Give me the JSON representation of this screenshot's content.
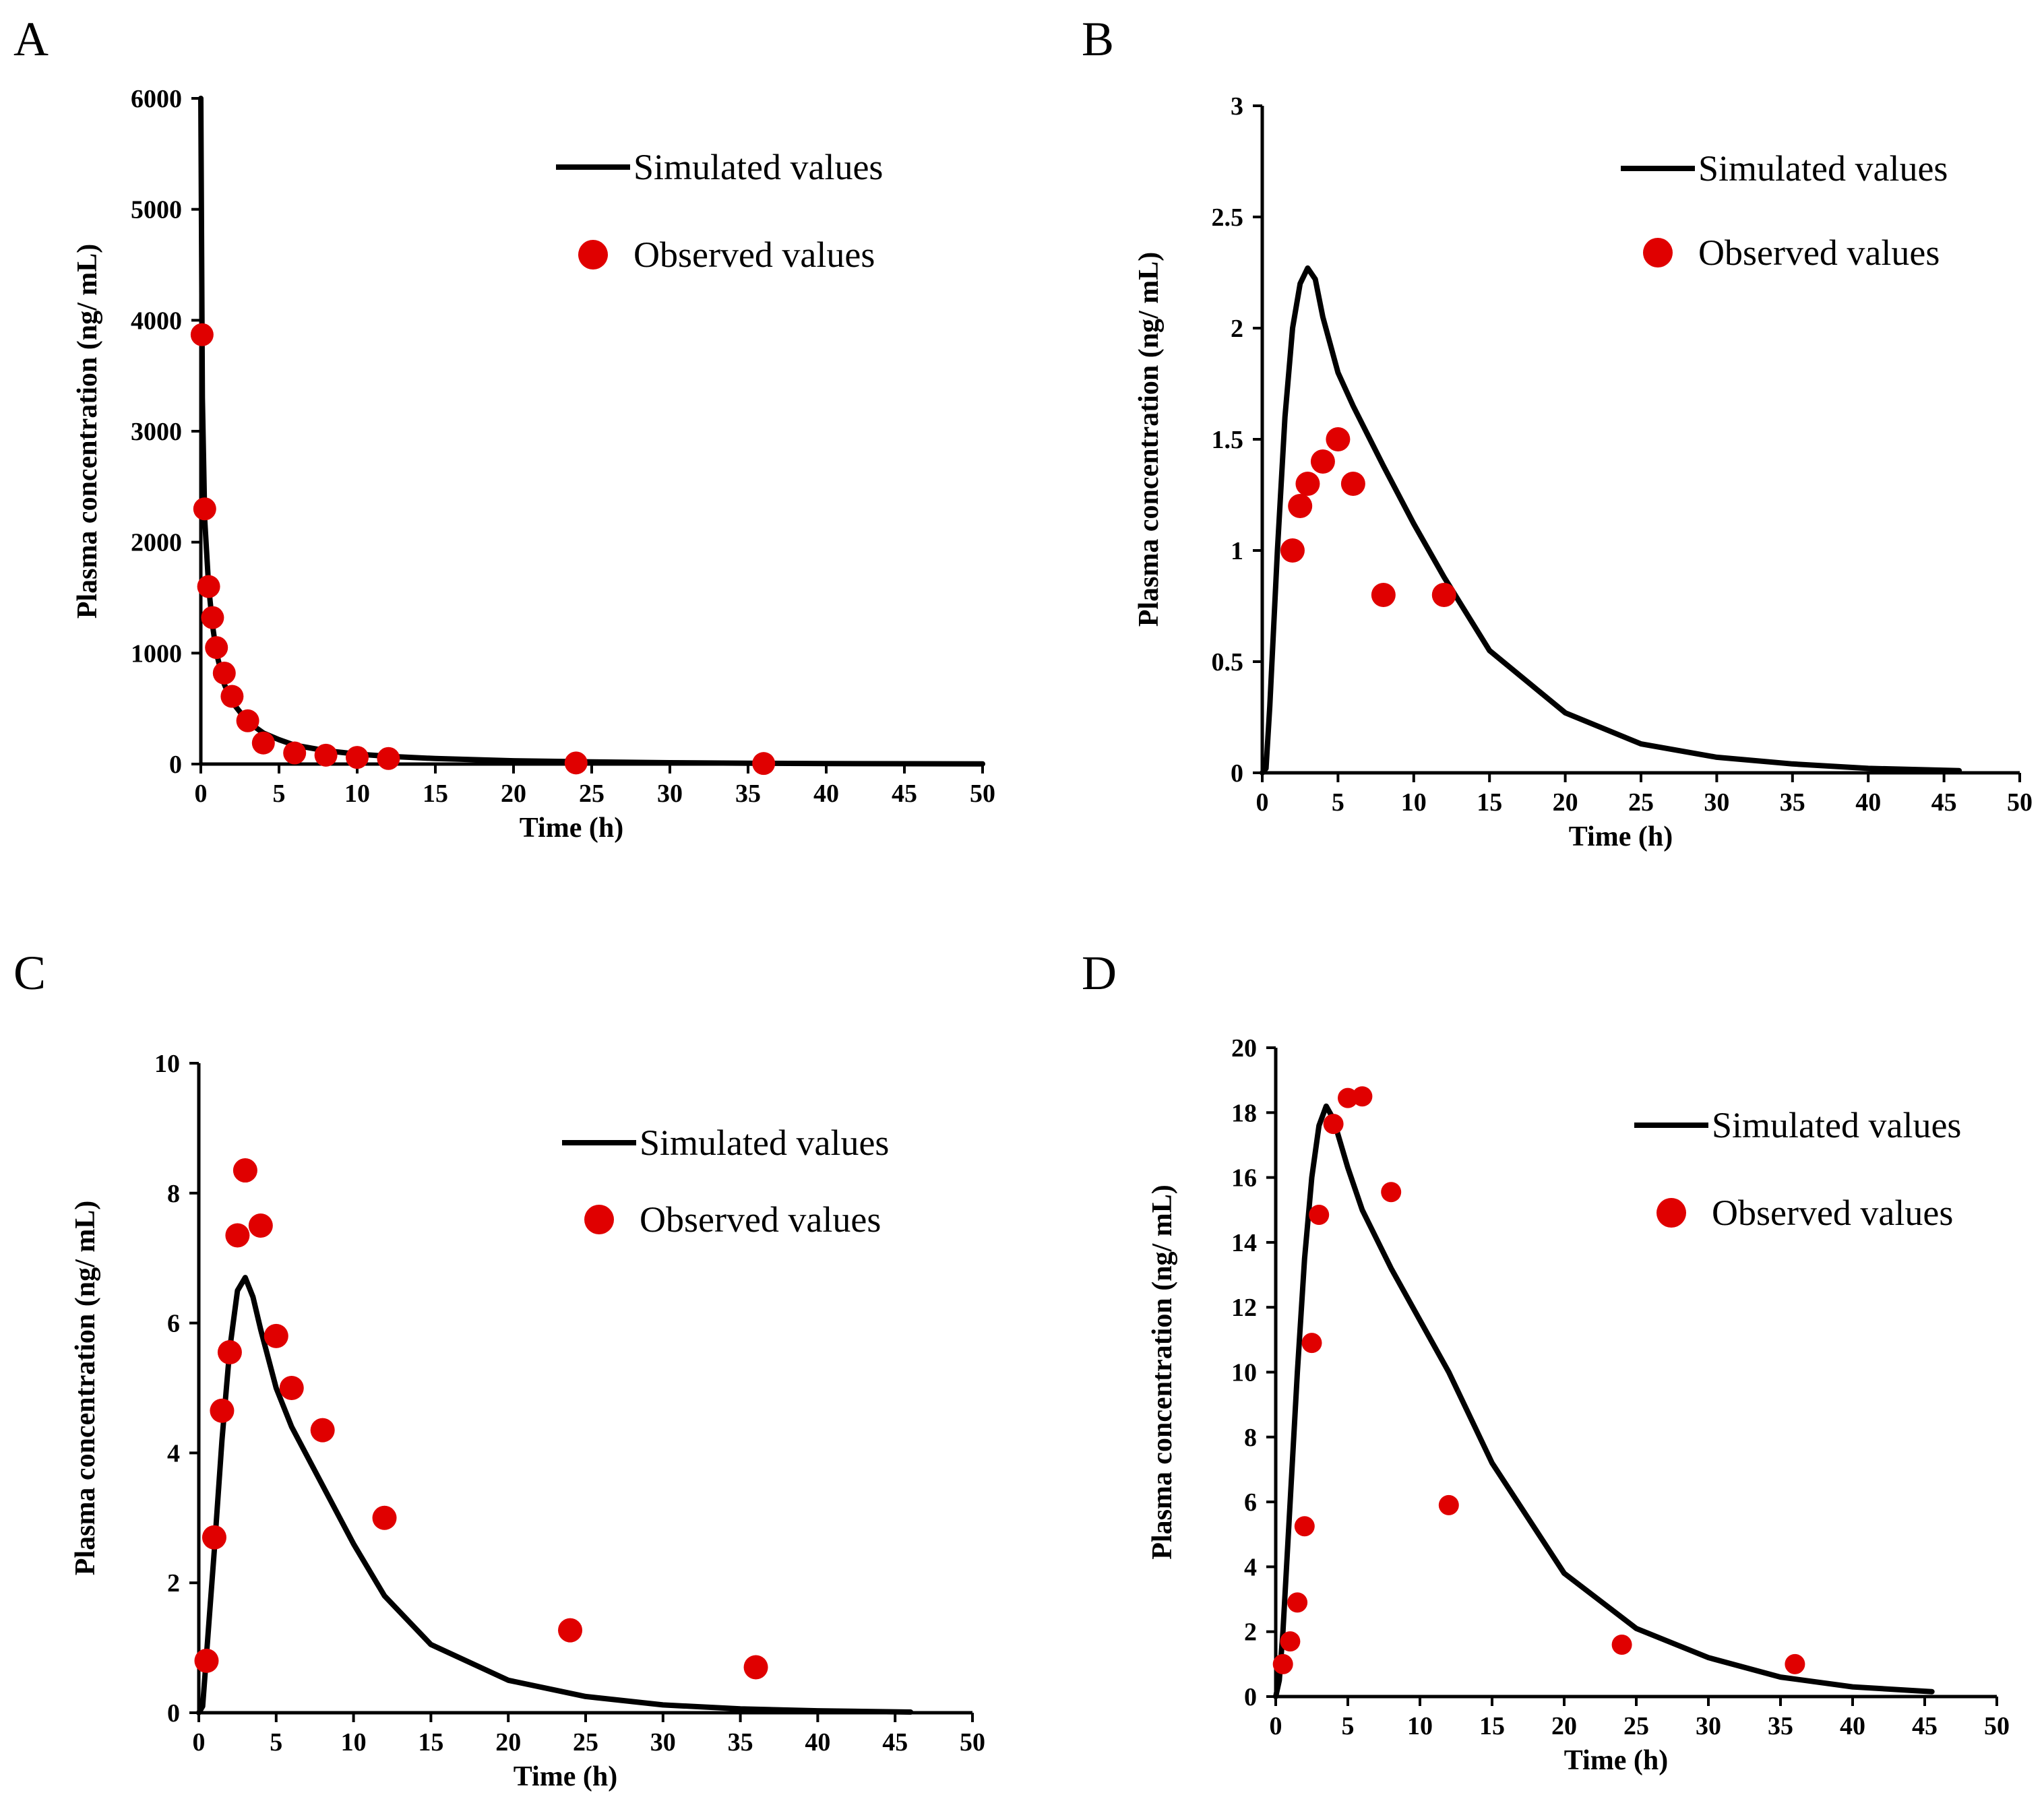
{
  "chart_data": [
    {
      "type": "scatter",
      "panel": "A",
      "title": "",
      "xlabel": "Time (h)",
      "ylabel": "Plasma concentration (ng/ mL)",
      "xlim": [
        0,
        50
      ],
      "ylim": [
        0,
        6000
      ],
      "xticks": [
        "0",
        "5",
        "10",
        "15",
        "20",
        "25",
        "30",
        "35",
        "40",
        "45",
        "50"
      ],
      "yticks": [
        "0",
        "1000",
        "2000",
        "3000",
        "4000",
        "5000",
        "6000"
      ],
      "legend": {
        "position": "top-right",
        "simulated_label": "Simulated values",
        "observed_label": "Observed values"
      },
      "colors": {
        "simulated": "#000000",
        "observed": "#e00000"
      },
      "series": [
        {
          "name": "Simulated values",
          "kind": "line",
          "x": [
            0,
            0.1,
            0.25,
            0.5,
            0.75,
            1,
            1.5,
            2,
            3,
            4,
            5,
            6,
            8,
            10,
            12,
            15,
            20,
            25,
            30,
            35,
            40,
            45,
            50
          ],
          "y": [
            6000,
            3300,
            2200,
            1600,
            1250,
            1000,
            720,
            560,
            380,
            280,
            220,
            170,
            120,
            90,
            70,
            50,
            30,
            20,
            12,
            8,
            5,
            3,
            2
          ]
        },
        {
          "name": "Observed values",
          "kind": "points",
          "x": [
            0.08,
            0.25,
            0.5,
            0.75,
            1,
            1.5,
            2,
            3,
            4,
            6,
            8,
            10,
            12,
            24,
            36
          ],
          "y": [
            3870,
            2300,
            1600,
            1320,
            1050,
            820,
            610,
            390,
            190,
            100,
            80,
            60,
            50,
            10,
            5
          ]
        }
      ]
    },
    {
      "type": "scatter",
      "panel": "B",
      "title": "",
      "xlabel": "Time (h)",
      "ylabel": "Plasma concentration (ng/ mL)",
      "xlim": [
        0,
        50
      ],
      "ylim": [
        0,
        3
      ],
      "xticks": [
        "0",
        "5",
        "10",
        "15",
        "20",
        "25",
        "30",
        "35",
        "40",
        "45",
        "50"
      ],
      "yticks": [
        "0",
        "0.5",
        "1",
        "1.5",
        "2",
        "2.5",
        "3"
      ],
      "legend": {
        "position": "top-right",
        "simulated_label": "Simulated values",
        "observed_label": "Observed values"
      },
      "colors": {
        "simulated": "#000000",
        "observed": "#e00000"
      },
      "series": [
        {
          "name": "Simulated values",
          "kind": "line",
          "x": [
            0,
            0.25,
            0.5,
            1,
            1.5,
            2,
            2.5,
            3,
            3.5,
            4,
            5,
            6,
            8,
            10,
            12,
            15,
            20,
            25,
            30,
            35,
            40,
            46
          ],
          "y": [
            0,
            0.02,
            0.3,
            1.0,
            1.6,
            2.0,
            2.2,
            2.27,
            2.22,
            2.05,
            1.8,
            1.65,
            1.38,
            1.12,
            0.88,
            0.55,
            0.27,
            0.13,
            0.07,
            0.04,
            0.02,
            0.01
          ]
        },
        {
          "name": "Observed values",
          "kind": "points",
          "x": [
            2,
            2.5,
            3,
            4,
            5,
            6,
            8,
            12
          ],
          "y": [
            1.0,
            1.2,
            1.3,
            1.4,
            1.5,
            1.3,
            0.8,
            0.8
          ]
        }
      ]
    },
    {
      "type": "scatter",
      "panel": "C",
      "title": "",
      "xlabel": "Time (h)",
      "ylabel": "Plasma concentration (ng/ mL)",
      "xlim": [
        0,
        50
      ],
      "ylim": [
        0,
        10
      ],
      "xticks": [
        "0",
        "5",
        "10",
        "15",
        "20",
        "25",
        "30",
        "35",
        "40",
        "45",
        "50"
      ],
      "yticks": [
        "0",
        "2",
        "4",
        "6",
        "8",
        "10"
      ],
      "legend": {
        "position": "top-right",
        "simulated_label": "Simulated values",
        "observed_label": "Observed values"
      },
      "colors": {
        "simulated": "#000000",
        "observed": "#e00000"
      },
      "series": [
        {
          "name": "Simulated values",
          "kind": "line",
          "x": [
            0,
            0.25,
            0.5,
            1,
            1.5,
            2,
            2.5,
            3,
            3.5,
            4,
            5,
            6,
            8,
            10,
            12,
            15,
            20,
            25,
            30,
            35,
            40,
            46
          ],
          "y": [
            0,
            0.1,
            0.9,
            2.5,
            4.2,
            5.6,
            6.5,
            6.7,
            6.4,
            5.9,
            5.0,
            4.4,
            3.5,
            2.6,
            1.8,
            1.05,
            0.5,
            0.25,
            0.12,
            0.06,
            0.03,
            0.01
          ]
        },
        {
          "name": "Observed values",
          "kind": "points",
          "x": [
            0.5,
            1,
            1.5,
            2,
            2.5,
            3,
            4,
            5,
            6,
            8,
            12,
            24,
            36
          ],
          "y": [
            0.8,
            2.7,
            4.65,
            5.55,
            7.35,
            8.35,
            7.5,
            5.8,
            5.0,
            4.35,
            3.0,
            1.27,
            0.7
          ]
        }
      ]
    },
    {
      "type": "scatter",
      "panel": "D",
      "title": "",
      "xlabel": "Time (h)",
      "ylabel": "Plasma concentration (ng/ mL)",
      "xlim": [
        0,
        50
      ],
      "ylim": [
        0,
        20
      ],
      "xticks": [
        "0",
        "5",
        "10",
        "15",
        "20",
        "25",
        "30",
        "35",
        "40",
        "45",
        "50"
      ],
      "yticks": [
        "0",
        "2",
        "4",
        "6",
        "8",
        "10",
        "12",
        "14",
        "16",
        "18",
        "20"
      ],
      "legend": {
        "position": "top-right",
        "simulated_label": "Simulated values",
        "observed_label": "Observed values"
      },
      "colors": {
        "simulated": "#000000",
        "observed": "#e00000"
      },
      "series": [
        {
          "name": "Simulated values",
          "kind": "line",
          "x": [
            0,
            0.25,
            0.5,
            1,
            1.5,
            2,
            2.5,
            3,
            3.5,
            4,
            5,
            6,
            8,
            10,
            12,
            15,
            20,
            25,
            30,
            35,
            40,
            45.5
          ],
          "y": [
            0,
            0.5,
            2.0,
            6.0,
            10.0,
            13.5,
            16.0,
            17.6,
            18.2,
            17.8,
            16.3,
            15.0,
            13.2,
            11.6,
            10.0,
            7.2,
            3.8,
            2.1,
            1.2,
            0.6,
            0.3,
            0.15
          ]
        },
        {
          "name": "Observed values",
          "kind": "points",
          "x": [
            0.5,
            1,
            1.5,
            2,
            2.5,
            3,
            4,
            5,
            6,
            8,
            12,
            24,
            36
          ],
          "y": [
            1.0,
            1.7,
            2.9,
            5.25,
            10.9,
            14.85,
            17.65,
            18.45,
            18.5,
            15.55,
            5.9,
            1.6,
            1.0
          ]
        }
      ]
    }
  ]
}
